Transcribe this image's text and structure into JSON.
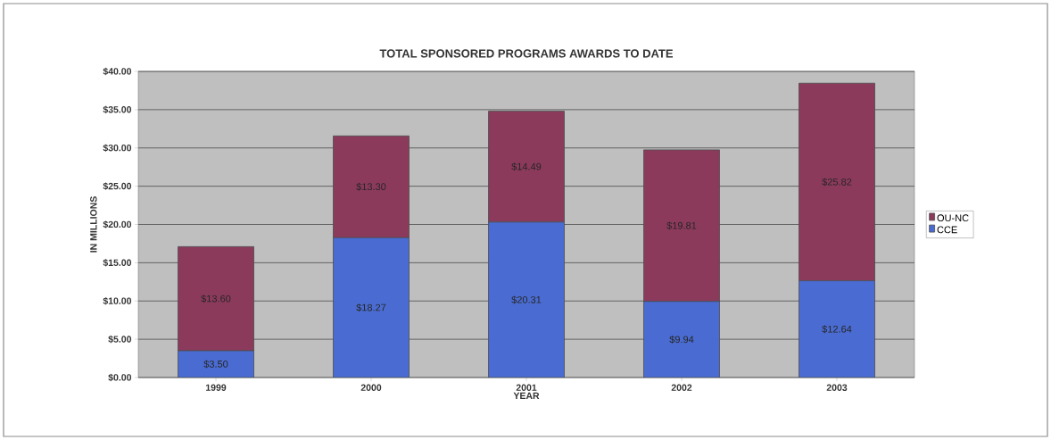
{
  "chart_data": {
    "type": "bar",
    "title": "TOTAL SPONSORED PROGRAMS AWARDS TO DATE",
    "xlabel": "YEAR",
    "ylabel": "IN MILLIONS",
    "categories": [
      "1999",
      "2000",
      "2001",
      "2002",
      "2003"
    ],
    "stacked": true,
    "series": [
      {
        "name": "CCE",
        "color": "#4a6cd2",
        "values": [
          3.5,
          18.27,
          20.31,
          9.94,
          12.64
        ],
        "value_labels": [
          "$3.50",
          "$18.27",
          "$20.31",
          "$9.94",
          "$12.64"
        ]
      },
      {
        "name": "OU-NC",
        "color": "#8c3a5c",
        "values": [
          13.6,
          13.3,
          14.49,
          19.81,
          25.82
        ],
        "value_labels": [
          "$13.60",
          "$13.30",
          "$14.49",
          "$19.81",
          "$25.82"
        ]
      }
    ],
    "ylim": [
      0,
      40
    ],
    "yticks": [
      {
        "value": 0,
        "label": "$0.00"
      },
      {
        "value": 5,
        "label": "$5.00"
      },
      {
        "value": 10,
        "label": "$10.00"
      },
      {
        "value": 15,
        "label": "$15.00"
      },
      {
        "value": 20,
        "label": "$20.00"
      },
      {
        "value": 25,
        "label": "$25.00"
      },
      {
        "value": 30,
        "label": "$30.00"
      },
      {
        "value": 35,
        "label": "$35.00"
      },
      {
        "value": 40,
        "label": "$40.00"
      }
    ],
    "grid": "y",
    "legend": "right"
  }
}
